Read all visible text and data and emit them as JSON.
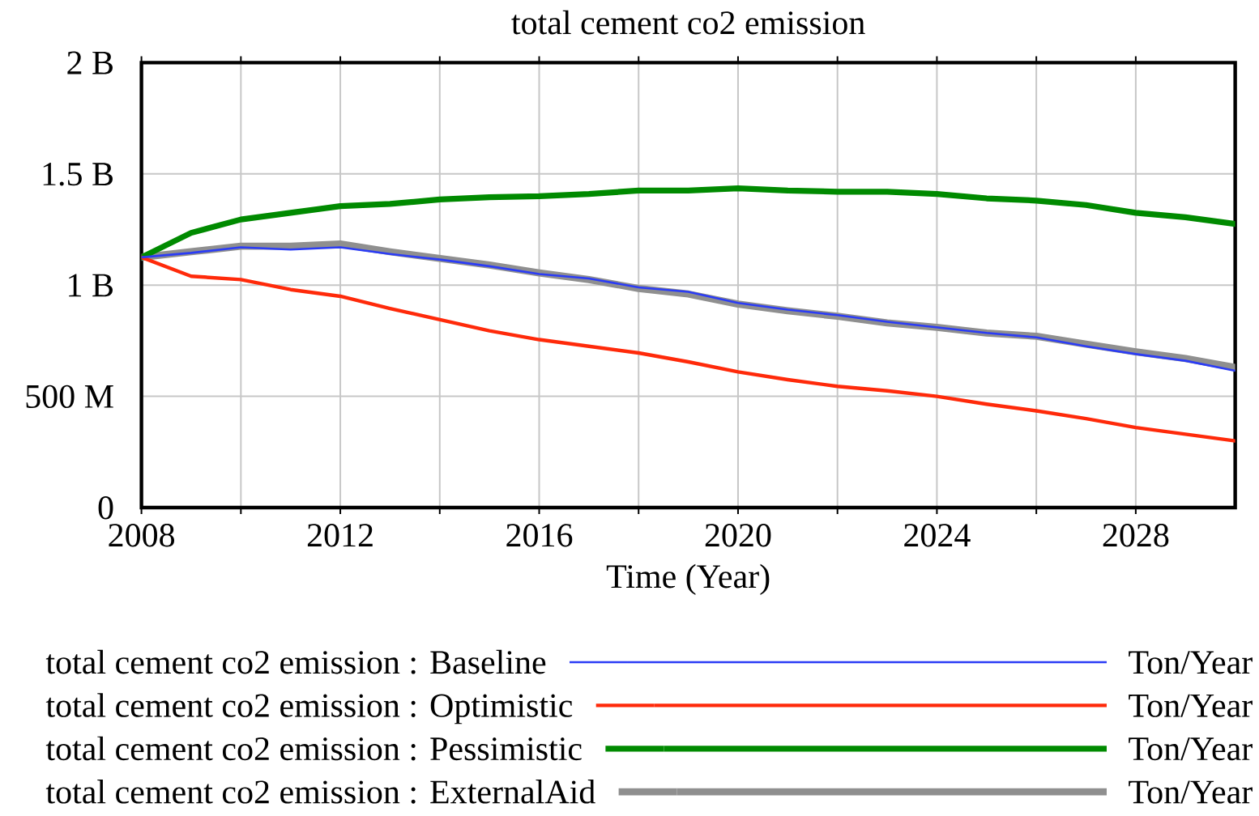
{
  "chart_data": {
    "type": "line",
    "title": "total cement co2 emission",
    "xlabel": "Time (Year)",
    "x": [
      2008,
      2009,
      2010,
      2011,
      2012,
      2013,
      2014,
      2015,
      2016,
      2017,
      2018,
      2019,
      2020,
      2021,
      2022,
      2023,
      2024,
      2025,
      2026,
      2027,
      2028,
      2029,
      2030
    ],
    "series": [
      {
        "name": "total cement co2 emission : Baseline",
        "color": "#2b3cf5",
        "values": [
          1125000000,
          1145000000,
          1170000000,
          1160000000,
          1170000000,
          1140000000,
          1115000000,
          1085000000,
          1050000000,
          1030000000,
          990000000,
          970000000,
          920000000,
          890000000,
          865000000,
          835000000,
          810000000,
          785000000,
          765000000,
          725000000,
          690000000,
          660000000,
          615000000
        ]
      },
      {
        "name": "total cement co2 emission : Optimistic",
        "color": "#ff2a0a",
        "values": [
          1125000000,
          1040000000,
          1025000000,
          980000000,
          950000000,
          895000000,
          845000000,
          795000000,
          755000000,
          725000000,
          695000000,
          655000000,
          610000000,
          575000000,
          545000000,
          525000000,
          500000000,
          465000000,
          435000000,
          400000000,
          360000000,
          330000000,
          300000000
        ]
      },
      {
        "name": "total cement co2 emission : Pessimistic",
        "color": "#008a00",
        "values": [
          1125000000,
          1235000000,
          1295000000,
          1325000000,
          1355000000,
          1365000000,
          1385000000,
          1395000000,
          1400000000,
          1410000000,
          1425000000,
          1425000000,
          1435000000,
          1425000000,
          1420000000,
          1420000000,
          1410000000,
          1390000000,
          1380000000,
          1360000000,
          1325000000,
          1305000000,
          1275000000
        ]
      },
      {
        "name": "total cement co2 emission : ExternalAid",
        "color": "#8f8f8f",
        "values": [
          1125000000,
          1150000000,
          1175000000,
          1175000000,
          1185000000,
          1150000000,
          1120000000,
          1090000000,
          1055000000,
          1025000000,
          985000000,
          960000000,
          915000000,
          885000000,
          860000000,
          830000000,
          810000000,
          785000000,
          770000000,
          735000000,
          700000000,
          670000000,
          630000000
        ]
      }
    ],
    "xlim": [
      2008,
      2030
    ],
    "xticks": [
      2008,
      {
        "value": 2010,
        "label": null
      },
      2012,
      {
        "value": 2014,
        "label": null
      },
      2016,
      {
        "value": 2018,
        "label": null
      },
      2020,
      {
        "value": 2022,
        "label": null
      },
      2024,
      {
        "value": 2026,
        "label": null
      },
      2028
    ],
    "ylim": [
      0,
      2000000000
    ],
    "yticks": [
      0,
      {
        "value": 500000000,
        "label": "500 M"
      },
      {
        "value": 1000000000,
        "label": "1 B"
      },
      {
        "value": 1500000000,
        "label": "1.5 B"
      },
      {
        "value": 2000000000,
        "label": "2 B"
      }
    ],
    "grid": true,
    "legend": "bottom",
    "annotations": [
      "Ton/Year",
      "Ton/Year",
      "Ton/Year",
      "Ton/Year"
    ]
  }
}
